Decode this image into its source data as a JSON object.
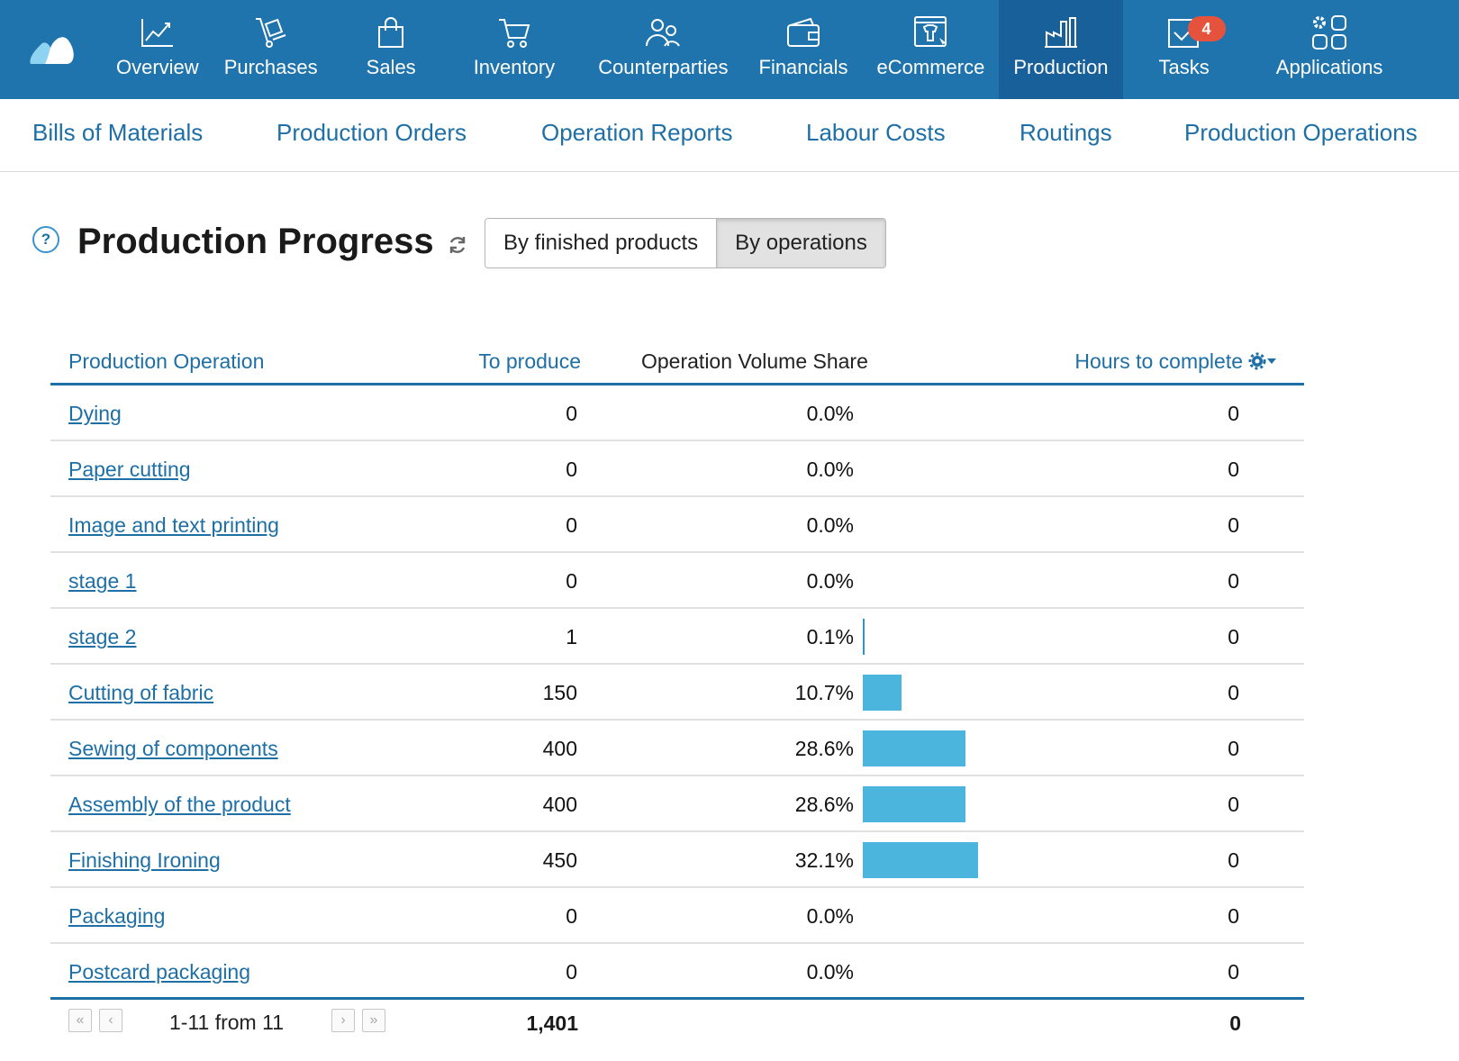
{
  "topnav": {
    "items": [
      {
        "label": "Overview",
        "icon": "chart-line-icon"
      },
      {
        "label": "Purchases",
        "icon": "hand-truck-icon"
      },
      {
        "label": "Sales",
        "icon": "shopping-bag-icon"
      },
      {
        "label": "Inventory",
        "icon": "cart-icon"
      },
      {
        "label": "Counterparties",
        "icon": "people-icon"
      },
      {
        "label": "Financials",
        "icon": "wallet-icon"
      },
      {
        "label": "eCommerce",
        "icon": "shop-window-icon"
      },
      {
        "label": "Production",
        "icon": "factory-icon",
        "active": true
      },
      {
        "label": "Tasks",
        "icon": "task-check-icon",
        "badge": "4"
      },
      {
        "label": "Applications",
        "icon": "apps-grid-icon"
      }
    ]
  },
  "subnav": {
    "items": [
      "Bills of Materials",
      "Production Orders",
      "Operation Reports",
      "Labour Costs",
      "Routings",
      "Production Operations"
    ]
  },
  "page": {
    "help": "?",
    "title": "Production Progress",
    "toggle": {
      "option1": "By finished products",
      "option2": "By operations",
      "selected": "By operations"
    }
  },
  "table": {
    "headers": {
      "operation": "Production Operation",
      "to_produce": "To produce",
      "share": "Operation Volume Share",
      "hours": "Hours to complete"
    },
    "rows": [
      {
        "name": "Dying",
        "to_produce": "0",
        "share": "0.0%",
        "share_value": 0.0,
        "hours": "0"
      },
      {
        "name": "Paper cutting",
        "to_produce": "0",
        "share": "0.0%",
        "share_value": 0.0,
        "hours": "0"
      },
      {
        "name": "Image and text printing",
        "to_produce": "0",
        "share": "0.0%",
        "share_value": 0.0,
        "hours": "0"
      },
      {
        "name": "stage 1",
        "to_produce": "0",
        "share": "0.0%",
        "share_value": 0.0,
        "hours": "0"
      },
      {
        "name": "stage 2",
        "to_produce": "1",
        "share": "0.1%",
        "share_value": 0.1,
        "hours": "0"
      },
      {
        "name": "Cutting of fabric",
        "to_produce": "150",
        "share": "10.7%",
        "share_value": 10.7,
        "hours": "0"
      },
      {
        "name": "Sewing of components",
        "to_produce": "400",
        "share": "28.6%",
        "share_value": 28.6,
        "hours": "0"
      },
      {
        "name": "Assembly of the product",
        "to_produce": "400",
        "share": "28.6%",
        "share_value": 28.6,
        "hours": "0"
      },
      {
        "name": "Finishing Ironing",
        "to_produce": "450",
        "share": "32.1%",
        "share_value": 32.1,
        "hours": "0"
      },
      {
        "name": "Packaging",
        "to_produce": "0",
        "share": "0.0%",
        "share_value": 0.0,
        "hours": "0"
      },
      {
        "name": "Postcard packaging",
        "to_produce": "0",
        "share": "0.0%",
        "share_value": 0.0,
        "hours": "0"
      }
    ],
    "footer": {
      "pagination": "1-11 from 11",
      "total_to_produce": "1,401",
      "total_hours": "0"
    }
  },
  "colors": {
    "nav_bg": "#2074ad",
    "nav_active": "#18609a",
    "link": "#1d6fa5",
    "bar": "#4cb5de",
    "badge": "#e6533c"
  }
}
